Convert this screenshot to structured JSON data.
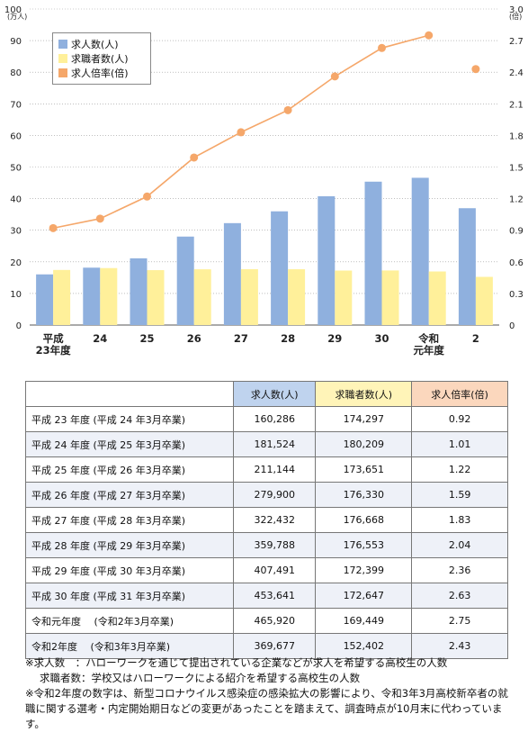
{
  "chart_data": {
    "type": "bar+line",
    "categories": [
      "平成\n23年度",
      "24",
      "25",
      "26",
      "27",
      "28",
      "29",
      "30",
      "令和\n元年度",
      "2"
    ],
    "series": [
      {
        "name": "求人数(人)",
        "type": "bar",
        "axis": "left",
        "color": "#8fb0de",
        "values": [
          16.0286,
          18.1524,
          21.1144,
          27.99,
          32.2432,
          35.9788,
          40.7491,
          45.3641,
          46.592,
          36.9677
        ]
      },
      {
        "name": "求職者数(人)",
        "type": "bar",
        "axis": "left",
        "color": "#fff09a",
        "values": [
          17.4297,
          18.0209,
          17.3651,
          17.633,
          17.6668,
          17.6553,
          17.2399,
          17.2647,
          16.9449,
          15.2402
        ]
      },
      {
        "name": "求人倍率(倍)",
        "type": "line",
        "axis": "right",
        "color": "#f5a76a",
        "values": [
          0.92,
          1.01,
          1.22,
          1.59,
          1.83,
          2.04,
          2.36,
          2.63,
          2.75,
          2.43
        ]
      }
    ],
    "yleft": {
      "label": "(万人)",
      "lim": [
        0,
        100
      ],
      "ticks": [
        0,
        10,
        20,
        30,
        40,
        50,
        60,
        70,
        80,
        90,
        100
      ]
    },
    "yright": {
      "label": "(倍)",
      "lim": [
        0,
        3.0
      ],
      "ticks": [
        "0",
        "0.3",
        "0.6",
        "0.9",
        "1.2",
        "1.5",
        "1.8",
        "2.1",
        "2.4",
        "2.7",
        "3.0"
      ]
    },
    "legend_position": "top-left",
    "line_break_before_last": true
  },
  "table": {
    "headers": [
      "",
      "求人数(人)",
      "求職者数(人)",
      "求人倍率(倍)"
    ],
    "rows": [
      [
        "平成 23 年度 (平成 24 年3月卒業)",
        "160,286",
        "174,297",
        "0.92"
      ],
      [
        "平成 24 年度 (平成 25 年3月卒業)",
        "181,524",
        "180,209",
        "1.01"
      ],
      [
        "平成 25 年度 (平成 26 年3月卒業)",
        "211,144",
        "173,651",
        "1.22"
      ],
      [
        "平成 26 年度 (平成 27 年3月卒業)",
        "279,900",
        "176,330",
        "1.59"
      ],
      [
        "平成 27 年度 (平成 28 年3月卒業)",
        "322,432",
        "176,668",
        "1.83"
      ],
      [
        "平成 28 年度 (平成 29 年3月卒業)",
        "359,788",
        "176,553",
        "2.04"
      ],
      [
        "平成 29 年度 (平成 30 年3月卒業)",
        "407,491",
        "172,399",
        "2.36"
      ],
      [
        "平成 30 年度 (平成 31 年3月卒業)",
        "453,641",
        "172,647",
        "2.63"
      ],
      [
        "令和元年度　 (令和2年3月卒業)",
        "465,920",
        "169,449",
        "2.75"
      ],
      [
        "令和2年度　 (令和3年3月卒業)",
        "369,677",
        "152,402",
        "2.43"
      ]
    ]
  },
  "notes": {
    "n1": "※求人数　：ハローワークを通じて提出されている企業などが求人を希望する高校生の人数",
    "n2": "求職者数：学校又はハローワークによる紹介を希望する高校生の人数",
    "n3": "※令和2年度の数字は、新型コロナウイルス感染症の感染拡大の影響により、令和3年3月高校新卒者の就職に関する選考・内定開始期日などの変更があったことを踏まえて、調査時点が10月末に代わっています。"
  }
}
